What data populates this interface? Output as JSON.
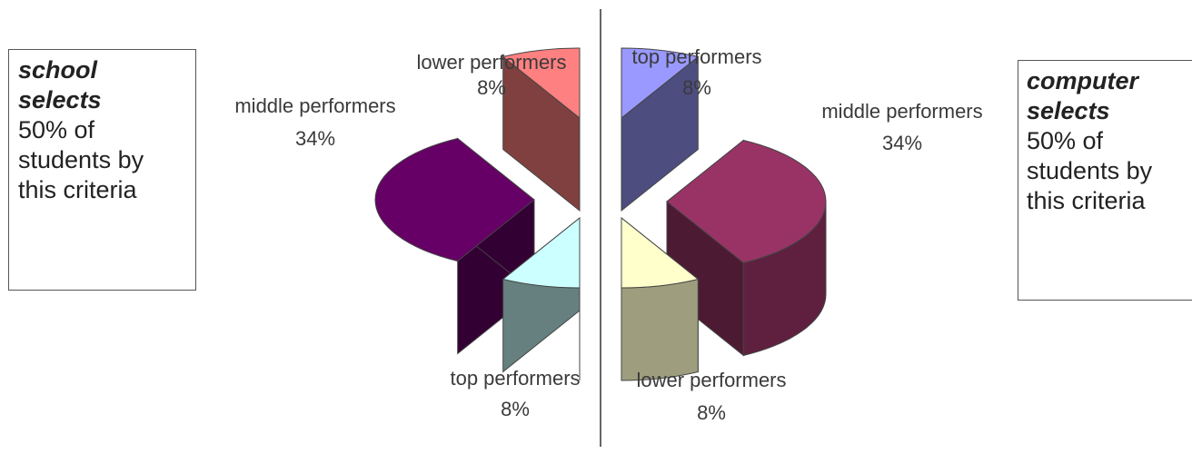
{
  "left_box": {
    "title_line1": "school",
    "title_line2": "selects",
    "body_line1": "50% of",
    "body_line2": "students by",
    "body_line3": "this criteria"
  },
  "right_box": {
    "title_line1": "computer",
    "title_line2": "selects",
    "body_line1": "50% of",
    "body_line2": "students by",
    "body_line3": "this criteria"
  },
  "chart_data": [
    {
      "type": "pie",
      "style": "3d-exploded-half",
      "categories": [
        "lower performers",
        "middle performers",
        "top performers"
      ],
      "values": [
        8,
        34,
        8
      ],
      "labels": [
        "8%",
        "34%",
        "8%"
      ],
      "colors": {
        "lower performers": "#ff8080",
        "middle performers": "#660066",
        "top performers": "#ccffff"
      }
    },
    {
      "type": "pie",
      "style": "3d-exploded-half",
      "categories": [
        "top performers",
        "middle performers",
        "lower performers"
      ],
      "values": [
        8,
        34,
        8
      ],
      "labels": [
        "8%",
        "34%",
        "8%"
      ],
      "colors": {
        "top performers": "#9999ff",
        "middle performers": "#993366",
        "lower performers": "#ffffcc"
      }
    }
  ]
}
